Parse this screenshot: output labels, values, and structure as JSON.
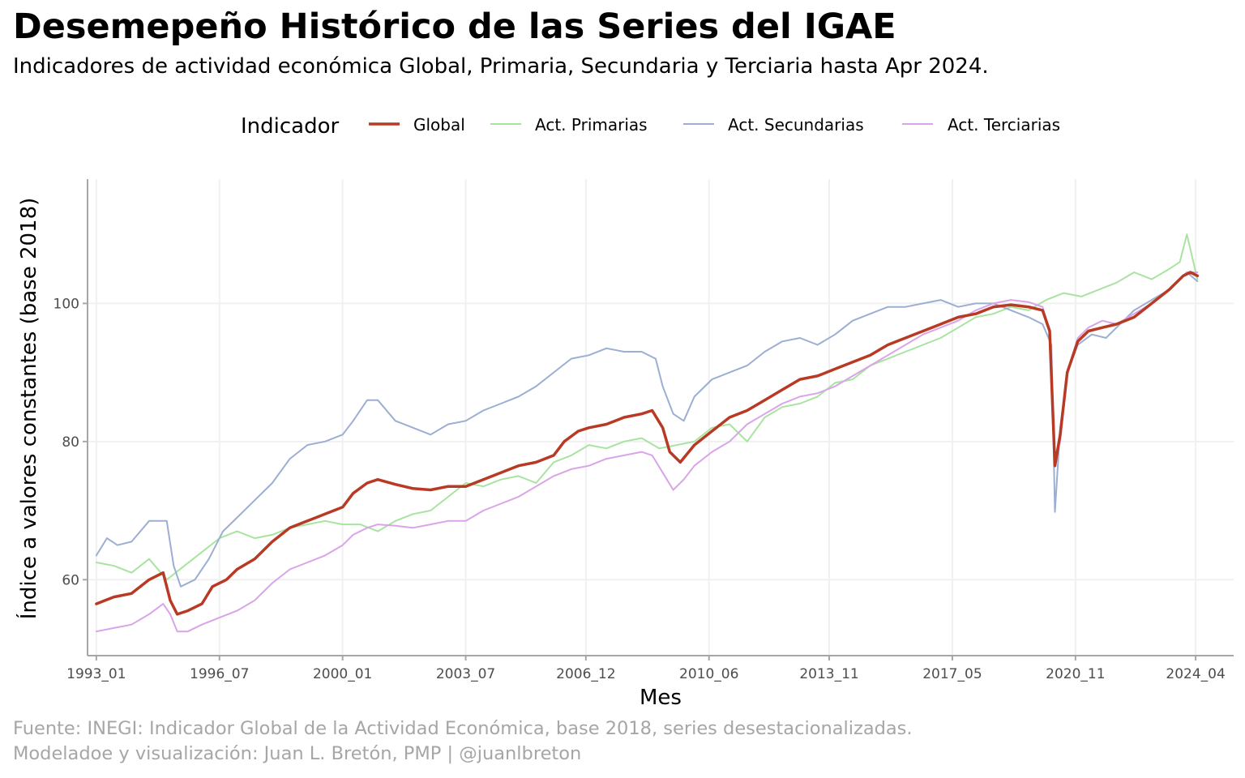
{
  "header": {
    "title": "Desemepeño Histórico de las Series del IGAE",
    "subtitle": "Indicadores de actividad económica Global, Primaria, Secundaria y Terciaria hasta Apr 2024."
  },
  "caption": {
    "line1": "Fuente: INEGI: Indicador Global de la Actividad Económica, base 2018, series desestacionalizadas.",
    "line2": "Modeladoe y visualización: Juan L. Bretón, PMP | @juanlbreton"
  },
  "colors": {
    "global": "#b83a24",
    "primarias": "#a8e4a0",
    "secundarias": "#9daed3",
    "terciarias": "#d9a4e8",
    "grid": "#f0f0f0",
    "axis": "#a6a6a6"
  },
  "chart_data": {
    "type": "line",
    "title": "Desemepeño Histórico de las Series del IGAE",
    "xlabel": "Mes",
    "ylabel": "Índice a valores constantes (base 2018)",
    "x_ticks": [
      "1993_01",
      "1996_07",
      "2000_01",
      "2003_07",
      "2006_12",
      "2010_06",
      "2013_11",
      "2017_05",
      "2020_11",
      "2024_04"
    ],
    "y_ticks": [
      60,
      80,
      100
    ],
    "ylim": [
      49,
      118
    ],
    "xlim": [
      1992.75,
      2025.33
    ],
    "grid": true,
    "legend": {
      "title": "Indicador",
      "position": "top"
    },
    "series": [
      {
        "key": "global",
        "name": "Global",
        "points": [
          [
            1993.0,
            56.5
          ],
          [
            1993.5,
            57.5
          ],
          [
            1994.0,
            58.0
          ],
          [
            1994.5,
            60.0
          ],
          [
            1994.9,
            61.0
          ],
          [
            1995.1,
            57.0
          ],
          [
            1995.3,
            55.0
          ],
          [
            1995.6,
            55.5
          ],
          [
            1996.0,
            56.5
          ],
          [
            1996.3,
            59.0
          ],
          [
            1996.7,
            60.0
          ],
          [
            1997.0,
            61.5
          ],
          [
            1997.5,
            63.0
          ],
          [
            1998.0,
            65.5
          ],
          [
            1998.5,
            67.5
          ],
          [
            1999.0,
            68.5
          ],
          [
            1999.5,
            69.5
          ],
          [
            2000.0,
            70.5
          ],
          [
            2000.3,
            72.5
          ],
          [
            2000.7,
            74.0
          ],
          [
            2001.0,
            74.5
          ],
          [
            2001.5,
            73.8
          ],
          [
            2002.0,
            73.2
          ],
          [
            2002.5,
            73.0
          ],
          [
            2003.0,
            73.5
          ],
          [
            2003.5,
            73.5
          ],
          [
            2004.0,
            74.5
          ],
          [
            2004.5,
            75.5
          ],
          [
            2005.0,
            76.5
          ],
          [
            2005.5,
            77.0
          ],
          [
            2006.0,
            78.0
          ],
          [
            2006.3,
            80.0
          ],
          [
            2006.7,
            81.5
          ],
          [
            2007.0,
            82.0
          ],
          [
            2007.5,
            82.5
          ],
          [
            2008.0,
            83.5
          ],
          [
            2008.5,
            84.0
          ],
          [
            2008.8,
            84.5
          ],
          [
            2009.1,
            82.0
          ],
          [
            2009.3,
            78.5
          ],
          [
            2009.6,
            77.0
          ],
          [
            2010.0,
            79.5
          ],
          [
            2010.5,
            81.5
          ],
          [
            2011.0,
            83.5
          ],
          [
            2011.5,
            84.5
          ],
          [
            2012.0,
            86.0
          ],
          [
            2012.5,
            87.5
          ],
          [
            2013.0,
            89.0
          ],
          [
            2013.5,
            89.5
          ],
          [
            2014.0,
            90.5
          ],
          [
            2014.5,
            91.5
          ],
          [
            2015.0,
            92.5
          ],
          [
            2015.5,
            94.0
          ],
          [
            2016.0,
            95.0
          ],
          [
            2016.5,
            96.0
          ],
          [
            2017.0,
            97.0
          ],
          [
            2017.5,
            98.0
          ],
          [
            2018.0,
            98.5
          ],
          [
            2018.5,
            99.5
          ],
          [
            2019.0,
            99.8
          ],
          [
            2019.5,
            99.5
          ],
          [
            2019.9,
            99.0
          ],
          [
            2020.1,
            96.0
          ],
          [
            2020.25,
            76.5
          ],
          [
            2020.4,
            81.0
          ],
          [
            2020.6,
            90.0
          ],
          [
            2020.9,
            94.5
          ],
          [
            2021.2,
            96.0
          ],
          [
            2021.6,
            96.5
          ],
          [
            2022.0,
            97.0
          ],
          [
            2022.5,
            98.0
          ],
          [
            2023.0,
            100.0
          ],
          [
            2023.5,
            102.0
          ],
          [
            2023.9,
            104.0
          ],
          [
            2024.1,
            104.5
          ],
          [
            2024.3,
            104.0
          ]
        ]
      },
      {
        "key": "primarias",
        "name": "Act. Primarias",
        "points": [
          [
            1993.0,
            62.5
          ],
          [
            1993.5,
            62.0
          ],
          [
            1994.0,
            61.0
          ],
          [
            1994.5,
            63.0
          ],
          [
            1995.0,
            60.0
          ],
          [
            1995.5,
            62.0
          ],
          [
            1996.0,
            64.0
          ],
          [
            1996.5,
            66.0
          ],
          [
            1997.0,
            67.0
          ],
          [
            1997.5,
            66.0
          ],
          [
            1998.0,
            66.5
          ],
          [
            1998.5,
            67.5
          ],
          [
            1999.0,
            68.0
          ],
          [
            1999.5,
            68.5
          ],
          [
            2000.0,
            68.0
          ],
          [
            2000.5,
            68.0
          ],
          [
            2001.0,
            67.0
          ],
          [
            2001.5,
            68.5
          ],
          [
            2002.0,
            69.5
          ],
          [
            2002.5,
            70.0
          ],
          [
            2003.0,
            72.0
          ],
          [
            2003.5,
            74.0
          ],
          [
            2004.0,
            73.5
          ],
          [
            2004.5,
            74.5
          ],
          [
            2005.0,
            75.0
          ],
          [
            2005.5,
            74.0
          ],
          [
            2006.0,
            77.0
          ],
          [
            2006.5,
            78.0
          ],
          [
            2007.0,
            79.5
          ],
          [
            2007.5,
            79.0
          ],
          [
            2008.0,
            80.0
          ],
          [
            2008.5,
            80.5
          ],
          [
            2009.0,
            79.0
          ],
          [
            2009.5,
            79.5
          ],
          [
            2010.0,
            80.0
          ],
          [
            2010.5,
            82.0
          ],
          [
            2011.0,
            82.5
          ],
          [
            2011.5,
            80.0
          ],
          [
            2012.0,
            83.5
          ],
          [
            2012.5,
            85.0
          ],
          [
            2013.0,
            85.5
          ],
          [
            2013.5,
            86.5
          ],
          [
            2014.0,
            88.5
          ],
          [
            2014.5,
            89.0
          ],
          [
            2015.0,
            91.0
          ],
          [
            2015.5,
            92.0
          ],
          [
            2016.0,
            93.0
          ],
          [
            2016.5,
            94.0
          ],
          [
            2017.0,
            95.0
          ],
          [
            2017.5,
            96.5
          ],
          [
            2018.0,
            98.0
          ],
          [
            2018.5,
            98.5
          ],
          [
            2019.0,
            99.5
          ],
          [
            2019.5,
            99.0
          ],
          [
            2020.0,
            100.5
          ],
          [
            2020.5,
            101.5
          ],
          [
            2021.0,
            101.0
          ],
          [
            2021.5,
            102.0
          ],
          [
            2022.0,
            103.0
          ],
          [
            2022.5,
            104.5
          ],
          [
            2023.0,
            103.5
          ],
          [
            2023.5,
            105.0
          ],
          [
            2023.8,
            106.0
          ],
          [
            2024.0,
            110.0
          ],
          [
            2024.3,
            103.5
          ]
        ]
      },
      {
        "key": "secundarias",
        "name": "Act. Secundarias",
        "points": [
          [
            1993.0,
            63.5
          ],
          [
            1993.3,
            66.0
          ],
          [
            1993.6,
            65.0
          ],
          [
            1994.0,
            65.5
          ],
          [
            1994.5,
            68.5
          ],
          [
            1995.0,
            68.5
          ],
          [
            1995.2,
            62.0
          ],
          [
            1995.4,
            59.0
          ],
          [
            1995.8,
            60.0
          ],
          [
            1996.2,
            63.0
          ],
          [
            1996.6,
            67.0
          ],
          [
            1997.0,
            69.0
          ],
          [
            1997.5,
            71.5
          ],
          [
            1998.0,
            74.0
          ],
          [
            1998.5,
            77.5
          ],
          [
            1999.0,
            79.5
          ],
          [
            1999.5,
            80.0
          ],
          [
            2000.0,
            81.0
          ],
          [
            2000.3,
            83.0
          ],
          [
            2000.7,
            86.0
          ],
          [
            2001.0,
            86.0
          ],
          [
            2001.5,
            83.0
          ],
          [
            2002.0,
            82.0
          ],
          [
            2002.5,
            81.0
          ],
          [
            2003.0,
            82.5
          ],
          [
            2003.5,
            83.0
          ],
          [
            2004.0,
            84.5
          ],
          [
            2004.5,
            85.5
          ],
          [
            2005.0,
            86.5
          ],
          [
            2005.5,
            88.0
          ],
          [
            2006.0,
            90.0
          ],
          [
            2006.5,
            92.0
          ],
          [
            2007.0,
            92.5
          ],
          [
            2007.5,
            93.5
          ],
          [
            2008.0,
            93.0
          ],
          [
            2008.5,
            93.0
          ],
          [
            2008.9,
            92.0
          ],
          [
            2009.1,
            88.0
          ],
          [
            2009.4,
            84.0
          ],
          [
            2009.7,
            83.0
          ],
          [
            2010.0,
            86.5
          ],
          [
            2010.5,
            89.0
          ],
          [
            2011.0,
            90.0
          ],
          [
            2011.5,
            91.0
          ],
          [
            2012.0,
            93.0
          ],
          [
            2012.5,
            94.5
          ],
          [
            2013.0,
            95.0
          ],
          [
            2013.5,
            94.0
          ],
          [
            2014.0,
            95.5
          ],
          [
            2014.5,
            97.5
          ],
          [
            2015.0,
            98.5
          ],
          [
            2015.5,
            99.5
          ],
          [
            2016.0,
            99.5
          ],
          [
            2016.5,
            100.0
          ],
          [
            2017.0,
            100.5
          ],
          [
            2017.5,
            99.5
          ],
          [
            2018.0,
            100.0
          ],
          [
            2018.5,
            100.0
          ],
          [
            2019.0,
            99.0
          ],
          [
            2019.5,
            98.0
          ],
          [
            2019.9,
            97.0
          ],
          [
            2020.15,
            94.0
          ],
          [
            2020.25,
            69.8
          ],
          [
            2020.4,
            82.0
          ],
          [
            2020.6,
            90.0
          ],
          [
            2020.9,
            94.0
          ],
          [
            2021.3,
            95.5
          ],
          [
            2021.7,
            95.0
          ],
          [
            2022.0,
            96.5
          ],
          [
            2022.5,
            99.0
          ],
          [
            2023.0,
            100.5
          ],
          [
            2023.5,
            102.0
          ],
          [
            2024.0,
            104.5
          ],
          [
            2024.3,
            103.2
          ]
        ]
      },
      {
        "key": "terciarias",
        "name": "Act. Terciarias",
        "points": [
          [
            1993.0,
            52.5
          ],
          [
            1993.5,
            53.0
          ],
          [
            1994.0,
            53.5
          ],
          [
            1994.5,
            55.0
          ],
          [
            1994.9,
            56.5
          ],
          [
            1995.1,
            55.0
          ],
          [
            1995.3,
            52.5
          ],
          [
            1995.6,
            52.5
          ],
          [
            1996.0,
            53.5
          ],
          [
            1996.5,
            54.5
          ],
          [
            1997.0,
            55.5
          ],
          [
            1997.5,
            57.0
          ],
          [
            1998.0,
            59.5
          ],
          [
            1998.5,
            61.5
          ],
          [
            1999.0,
            62.5
          ],
          [
            1999.5,
            63.5
          ],
          [
            2000.0,
            65.0
          ],
          [
            2000.3,
            66.5
          ],
          [
            2000.7,
            67.5
          ],
          [
            2001.0,
            68.0
          ],
          [
            2001.5,
            67.8
          ],
          [
            2002.0,
            67.5
          ],
          [
            2002.5,
            68.0
          ],
          [
            2003.0,
            68.5
          ],
          [
            2003.5,
            68.5
          ],
          [
            2004.0,
            70.0
          ],
          [
            2004.5,
            71.0
          ],
          [
            2005.0,
            72.0
          ],
          [
            2005.5,
            73.5
          ],
          [
            2006.0,
            75.0
          ],
          [
            2006.5,
            76.0
          ],
          [
            2007.0,
            76.5
          ],
          [
            2007.5,
            77.5
          ],
          [
            2008.0,
            78.0
          ],
          [
            2008.5,
            78.5
          ],
          [
            2008.8,
            78.0
          ],
          [
            2009.1,
            75.5
          ],
          [
            2009.4,
            73.0
          ],
          [
            2009.7,
            74.5
          ],
          [
            2010.0,
            76.5
          ],
          [
            2010.5,
            78.5
          ],
          [
            2011.0,
            80.0
          ],
          [
            2011.5,
            82.5
          ],
          [
            2012.0,
            84.0
          ],
          [
            2012.5,
            85.5
          ],
          [
            2013.0,
            86.5
          ],
          [
            2013.5,
            87.0
          ],
          [
            2014.0,
            88.0
          ],
          [
            2014.5,
            89.5
          ],
          [
            2015.0,
            91.0
          ],
          [
            2015.5,
            92.5
          ],
          [
            2016.0,
            94.0
          ],
          [
            2016.5,
            95.5
          ],
          [
            2017.0,
            96.5
          ],
          [
            2017.5,
            97.5
          ],
          [
            2018.0,
            99.0
          ],
          [
            2018.5,
            100.0
          ],
          [
            2019.0,
            100.5
          ],
          [
            2019.5,
            100.2
          ],
          [
            2019.9,
            99.5
          ],
          [
            2020.1,
            96.0
          ],
          [
            2020.25,
            77.0
          ],
          [
            2020.4,
            80.0
          ],
          [
            2020.6,
            90.0
          ],
          [
            2020.9,
            95.0
          ],
          [
            2021.2,
            96.5
          ],
          [
            2021.6,
            97.5
          ],
          [
            2022.0,
            97.0
          ],
          [
            2022.5,
            98.5
          ],
          [
            2023.0,
            100.0
          ],
          [
            2023.5,
            102.0
          ],
          [
            2024.0,
            104.5
          ],
          [
            2024.3,
            104.5
          ]
        ]
      }
    ]
  }
}
